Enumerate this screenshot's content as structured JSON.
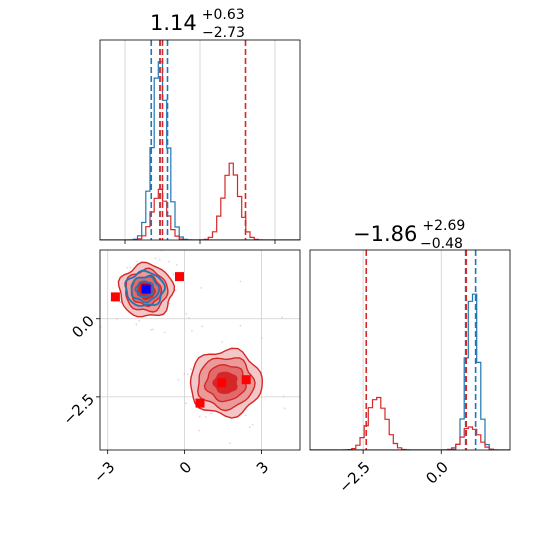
{
  "chart_data": {
    "type": "corner",
    "panels": [
      {
        "id": "hist-x",
        "type": "histogram",
        "title": {
          "value": "1.14",
          "upper": "+0.63",
          "lower": "−2.73"
        },
        "xlim": [
          -4.0,
          4.0
        ],
        "ylim": [
          0,
          1.0
        ],
        "grid": true,
        "series": [
          {
            "color": "#1f77b4",
            "shape": "single-peak",
            "peaks": [
              {
                "center": -1.6,
                "sigma": 0.3,
                "height": 0.85
              }
            ]
          },
          {
            "color": "#d62728",
            "shape": "bimodal",
            "peaks": [
              {
                "center": -1.6,
                "sigma": 0.3,
                "height": 0.24
              },
              {
                "center": 1.25,
                "sigma": 0.32,
                "height": 0.38
              }
            ]
          }
        ],
        "vlines": [
          {
            "color": "#1f77b4",
            "values": [
              -1.95,
              -1.6,
              -1.3
            ]
          },
          {
            "color": "#d62728",
            "values": [
              -1.6,
              -1.5,
              1.82
            ]
          }
        ]
      },
      {
        "id": "joint-xy",
        "type": "contour-scatter",
        "xlim": [
          -3.3,
          4.5
        ],
        "ylim": [
          -4.2,
          2.2
        ],
        "xticks": [
          "−3",
          "0",
          "3"
        ],
        "xtick_values": [
          -3,
          0,
          3
        ],
        "yticks": [
          "0.0",
          "−2.5"
        ],
        "ytick_values": [
          0.0,
          -2.5
        ],
        "grid": true,
        "red_markers": [
          [
            -2.7,
            0.7
          ],
          [
            -1.55,
            1.0
          ],
          [
            -0.2,
            1.35
          ],
          [
            1.45,
            -2.05
          ],
          [
            2.4,
            -1.95
          ],
          [
            0.6,
            -2.7
          ]
        ],
        "blue_markers": [
          [
            -1.5,
            0.95
          ]
        ],
        "red_clusters": [
          {
            "cx": -1.5,
            "cy": 0.9,
            "rx": 1.05,
            "ry": 0.85
          },
          {
            "cx": 1.6,
            "cy": -2.05,
            "rx": 1.4,
            "ry": 1.05
          }
        ],
        "blue_cluster": {
          "cx": -1.55,
          "cy": 0.95,
          "rx": 0.75,
          "ry": 0.55
        }
      },
      {
        "id": "hist-y",
        "type": "histogram",
        "title": {
          "value": "−1.86",
          "upper": "+2.69",
          "lower": "−0.48"
        },
        "xlim": [
          -4.2,
          2.2
        ],
        "ylim": [
          0,
          1.0
        ],
        "xticks": [
          "−2.5",
          "0.0"
        ],
        "xtick_values": [
          -2.5,
          0.0
        ],
        "grid": true,
        "series": [
          {
            "color": "#1f77b4",
            "shape": "single-peak",
            "peaks": [
              {
                "center": 1.0,
                "sigma": 0.18,
                "height": 0.8
              }
            ]
          },
          {
            "color": "#d62728",
            "shape": "bimodal",
            "peaks": [
              {
                "center": -2.05,
                "sigma": 0.28,
                "height": 0.27
              },
              {
                "center": 0.95,
                "sigma": 0.25,
                "height": 0.12
              }
            ]
          }
        ],
        "vlines": [
          {
            "color": "#1f77b4",
            "values": [
              0.78,
              1.1
            ]
          },
          {
            "color": "#d62728",
            "values": [
              -2.4,
              0.8
            ]
          }
        ]
      }
    ]
  }
}
